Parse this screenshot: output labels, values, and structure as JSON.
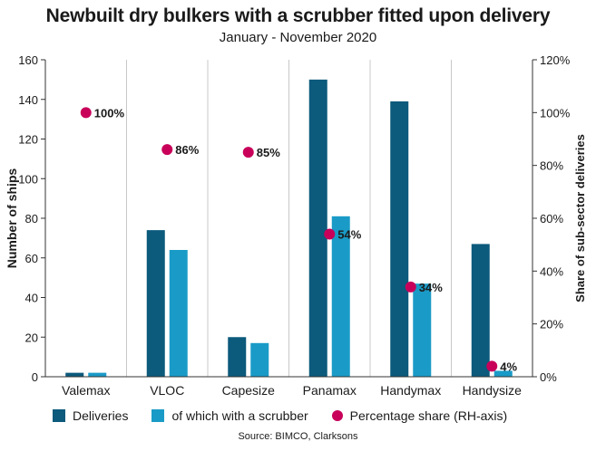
{
  "header": {
    "title": "Newbuilt dry bulkers with a scrubber fitted upon delivery",
    "subtitle": "January - November 2020"
  },
  "source": "Source: BIMCO, Clarksons",
  "chart_data": {
    "type": "bar",
    "title": "Newbuilt dry bulkers with a scrubber fitted upon delivery",
    "subtitle": "January - November 2020",
    "categories": [
      "Valemax",
      "VLOC",
      "Capesize",
      "Panamax",
      "Handymax",
      "Handysize"
    ],
    "series": [
      {
        "name": "Deliveries",
        "type": "bar",
        "axis": "left",
        "color": "#0c5a7c",
        "values": [
          2,
          74,
          20,
          150,
          139,
          67
        ]
      },
      {
        "name": "of which with a scrubber",
        "type": "bar",
        "axis": "left",
        "color": "#1a9bc7",
        "values": [
          2,
          64,
          17,
          81,
          47,
          3
        ]
      },
      {
        "name": "Percentage share (RH-axis)",
        "type": "scatter",
        "axis": "right",
        "color": "#c8005a",
        "values": [
          100,
          86,
          85,
          54,
          34,
          4
        ],
        "labels": [
          "100%",
          "86%",
          "85%",
          "54%",
          "34%",
          "4%"
        ]
      }
    ],
    "ylabel": "Number of ships",
    "ylabel_right": "Share of sub-sector deliveries",
    "ylim": [
      0,
      160
    ],
    "yticks": [
      0,
      20,
      40,
      60,
      80,
      100,
      120,
      140,
      160
    ],
    "ylim_right": [
      0,
      120
    ],
    "yticks_right": [
      "0%",
      "20%",
      "40%",
      "60%",
      "80%",
      "100%",
      "120%"
    ],
    "grid": "vertical",
    "legend_position": "bottom"
  }
}
